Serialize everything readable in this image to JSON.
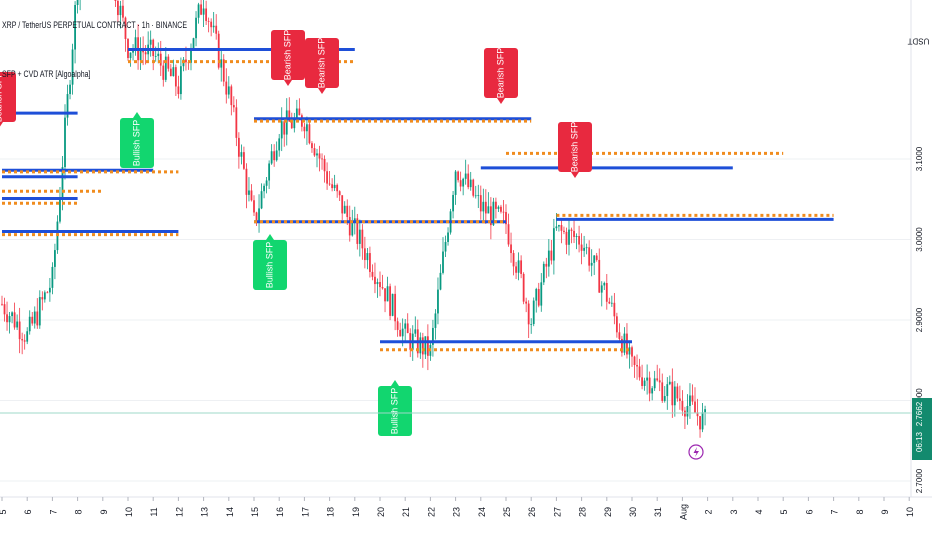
{
  "header": {
    "symbol_title": "XRP / TetherUS PERPETUAL CONTRACT · 1h · BINANCE",
    "indicator_name": "SFP + CVD ATR [Algoalpha]"
  },
  "price_scale": {
    "currency": "USDT",
    "labels": [
      "3.1000",
      "3.0000",
      "2.9000",
      "2.8000",
      "2.7000"
    ],
    "current_price": "2.7662",
    "countdown": "06:13"
  },
  "time_axis": {
    "labels": [
      "5",
      "6",
      "7",
      "8",
      "9",
      "10",
      "11",
      "12",
      "13",
      "14",
      "15",
      "16",
      "17",
      "18",
      "19",
      "20",
      "21",
      "22",
      "23",
      "24",
      "25",
      "26",
      "27",
      "28",
      "29",
      "30",
      "31",
      "Aug",
      "2",
      "3",
      "4",
      "5",
      "6",
      "7",
      "8",
      "9",
      "10"
    ]
  },
  "signals": {
    "bearish_label": "Bearish SFP",
    "bullish_label": "Bullish SFP"
  },
  "colors": {
    "bull_candle": "#089981",
    "bear_candle": "#f23645",
    "bearish_box": "#e8293f",
    "bullish_box": "#12d66f",
    "level_blue": "#1e4fd8",
    "level_orange": "#f08c1e",
    "current_price_badge": "#138a6e",
    "grid": "#eef0f3"
  },
  "chart_data": {
    "type": "candlestick",
    "x": [
      "5",
      "6",
      "7",
      "8",
      "9",
      "10",
      "11",
      "12",
      "13",
      "14",
      "15",
      "16",
      "17",
      "18",
      "19",
      "20",
      "21",
      "22",
      "23",
      "24",
      "25",
      "26",
      "27",
      "28",
      "29",
      "30",
      "31",
      "Aug",
      "2"
    ],
    "close_path_approx": [
      2.92,
      2.88,
      2.95,
      3.32,
      3.38,
      3.24,
      3.23,
      3.19,
      3.3,
      3.18,
      3.02,
      3.14,
      3.15,
      3.07,
      3.01,
      2.95,
      2.88,
      2.86,
      3.09,
      3.04,
      3.02,
      2.9,
      3.01,
      3.0,
      2.93,
      2.84,
      2.82,
      2.8,
      2.77
    ],
    "ylim": [
      2.68,
      3.34
    ],
    "current_price": 2.7662,
    "levels": [
      {
        "style": "solid",
        "color": "blue",
        "price": 3.236,
        "x_start": "10",
        "x_end": "19"
      },
      {
        "style": "dotted",
        "color": "orange",
        "price": 3.221,
        "x_start": "10",
        "x_end": "19"
      },
      {
        "style": "solid",
        "color": "blue",
        "price": 3.157,
        "x_start": "5",
        "x_end": "8"
      },
      {
        "style": "solid",
        "color": "blue",
        "price": 3.15,
        "x_start": "15",
        "x_end": "26"
      },
      {
        "style": "dotted",
        "color": "orange",
        "price": 3.147,
        "x_start": "15",
        "x_end": "26"
      },
      {
        "style": "dotted",
        "color": "orange",
        "price": 3.107,
        "x_start": "25",
        "x_end": "5"
      },
      {
        "style": "solid",
        "color": "blue",
        "price": 3.089,
        "x_start": "24",
        "x_end": "3"
      },
      {
        "style": "solid",
        "color": "blue",
        "price": 3.086,
        "x_start": "5",
        "x_end": "11"
      },
      {
        "style": "dotted",
        "color": "orange",
        "price": 3.084,
        "x_start": "5",
        "x_end": "12"
      },
      {
        "style": "solid",
        "color": "blue",
        "price": 3.078,
        "x_start": "5",
        "x_end": "8"
      },
      {
        "style": "dotted",
        "color": "orange",
        "price": 3.06,
        "x_start": "5",
        "x_end": "9"
      },
      {
        "style": "solid",
        "color": "blue",
        "price": 3.051,
        "x_start": "5",
        "x_end": "8"
      },
      {
        "style": "dotted",
        "color": "orange",
        "price": 3.045,
        "x_start": "5",
        "x_end": "8"
      },
      {
        "style": "dotted",
        "color": "orange",
        "price": 3.03,
        "x_start": "27",
        "x_end": "7"
      },
      {
        "style": "solid",
        "color": "blue",
        "price": 3.025,
        "x_start": "27",
        "x_end": "7"
      },
      {
        "style": "solid",
        "color": "blue",
        "price": 3.022,
        "x_start": "15",
        "x_end": "25"
      },
      {
        "style": "dotted",
        "color": "orange",
        "price": 3.022,
        "x_start": "15",
        "x_end": "25"
      },
      {
        "style": "solid",
        "color": "blue",
        "price": 3.01,
        "x_start": "5",
        "x_end": "12"
      },
      {
        "style": "dotted",
        "color": "orange",
        "price": 3.006,
        "x_start": "5",
        "x_end": "12"
      },
      {
        "style": "solid",
        "color": "blue",
        "price": 2.873,
        "x_start": "20",
        "x_end": "30"
      },
      {
        "style": "dotted",
        "color": "orange",
        "price": 2.863,
        "x_start": "20",
        "x_end": "30"
      }
    ],
    "signals": [
      {
        "type": "bearish",
        "x": "5"
      },
      {
        "type": "bullish",
        "x": "10"
      },
      {
        "type": "bearish",
        "x": "16"
      },
      {
        "type": "bearish",
        "x": "17"
      },
      {
        "type": "bullish",
        "x": "15"
      },
      {
        "type": "bearish",
        "x": "24"
      },
      {
        "type": "bearish",
        "x": "28"
      },
      {
        "type": "bullish",
        "x": "21"
      }
    ]
  }
}
